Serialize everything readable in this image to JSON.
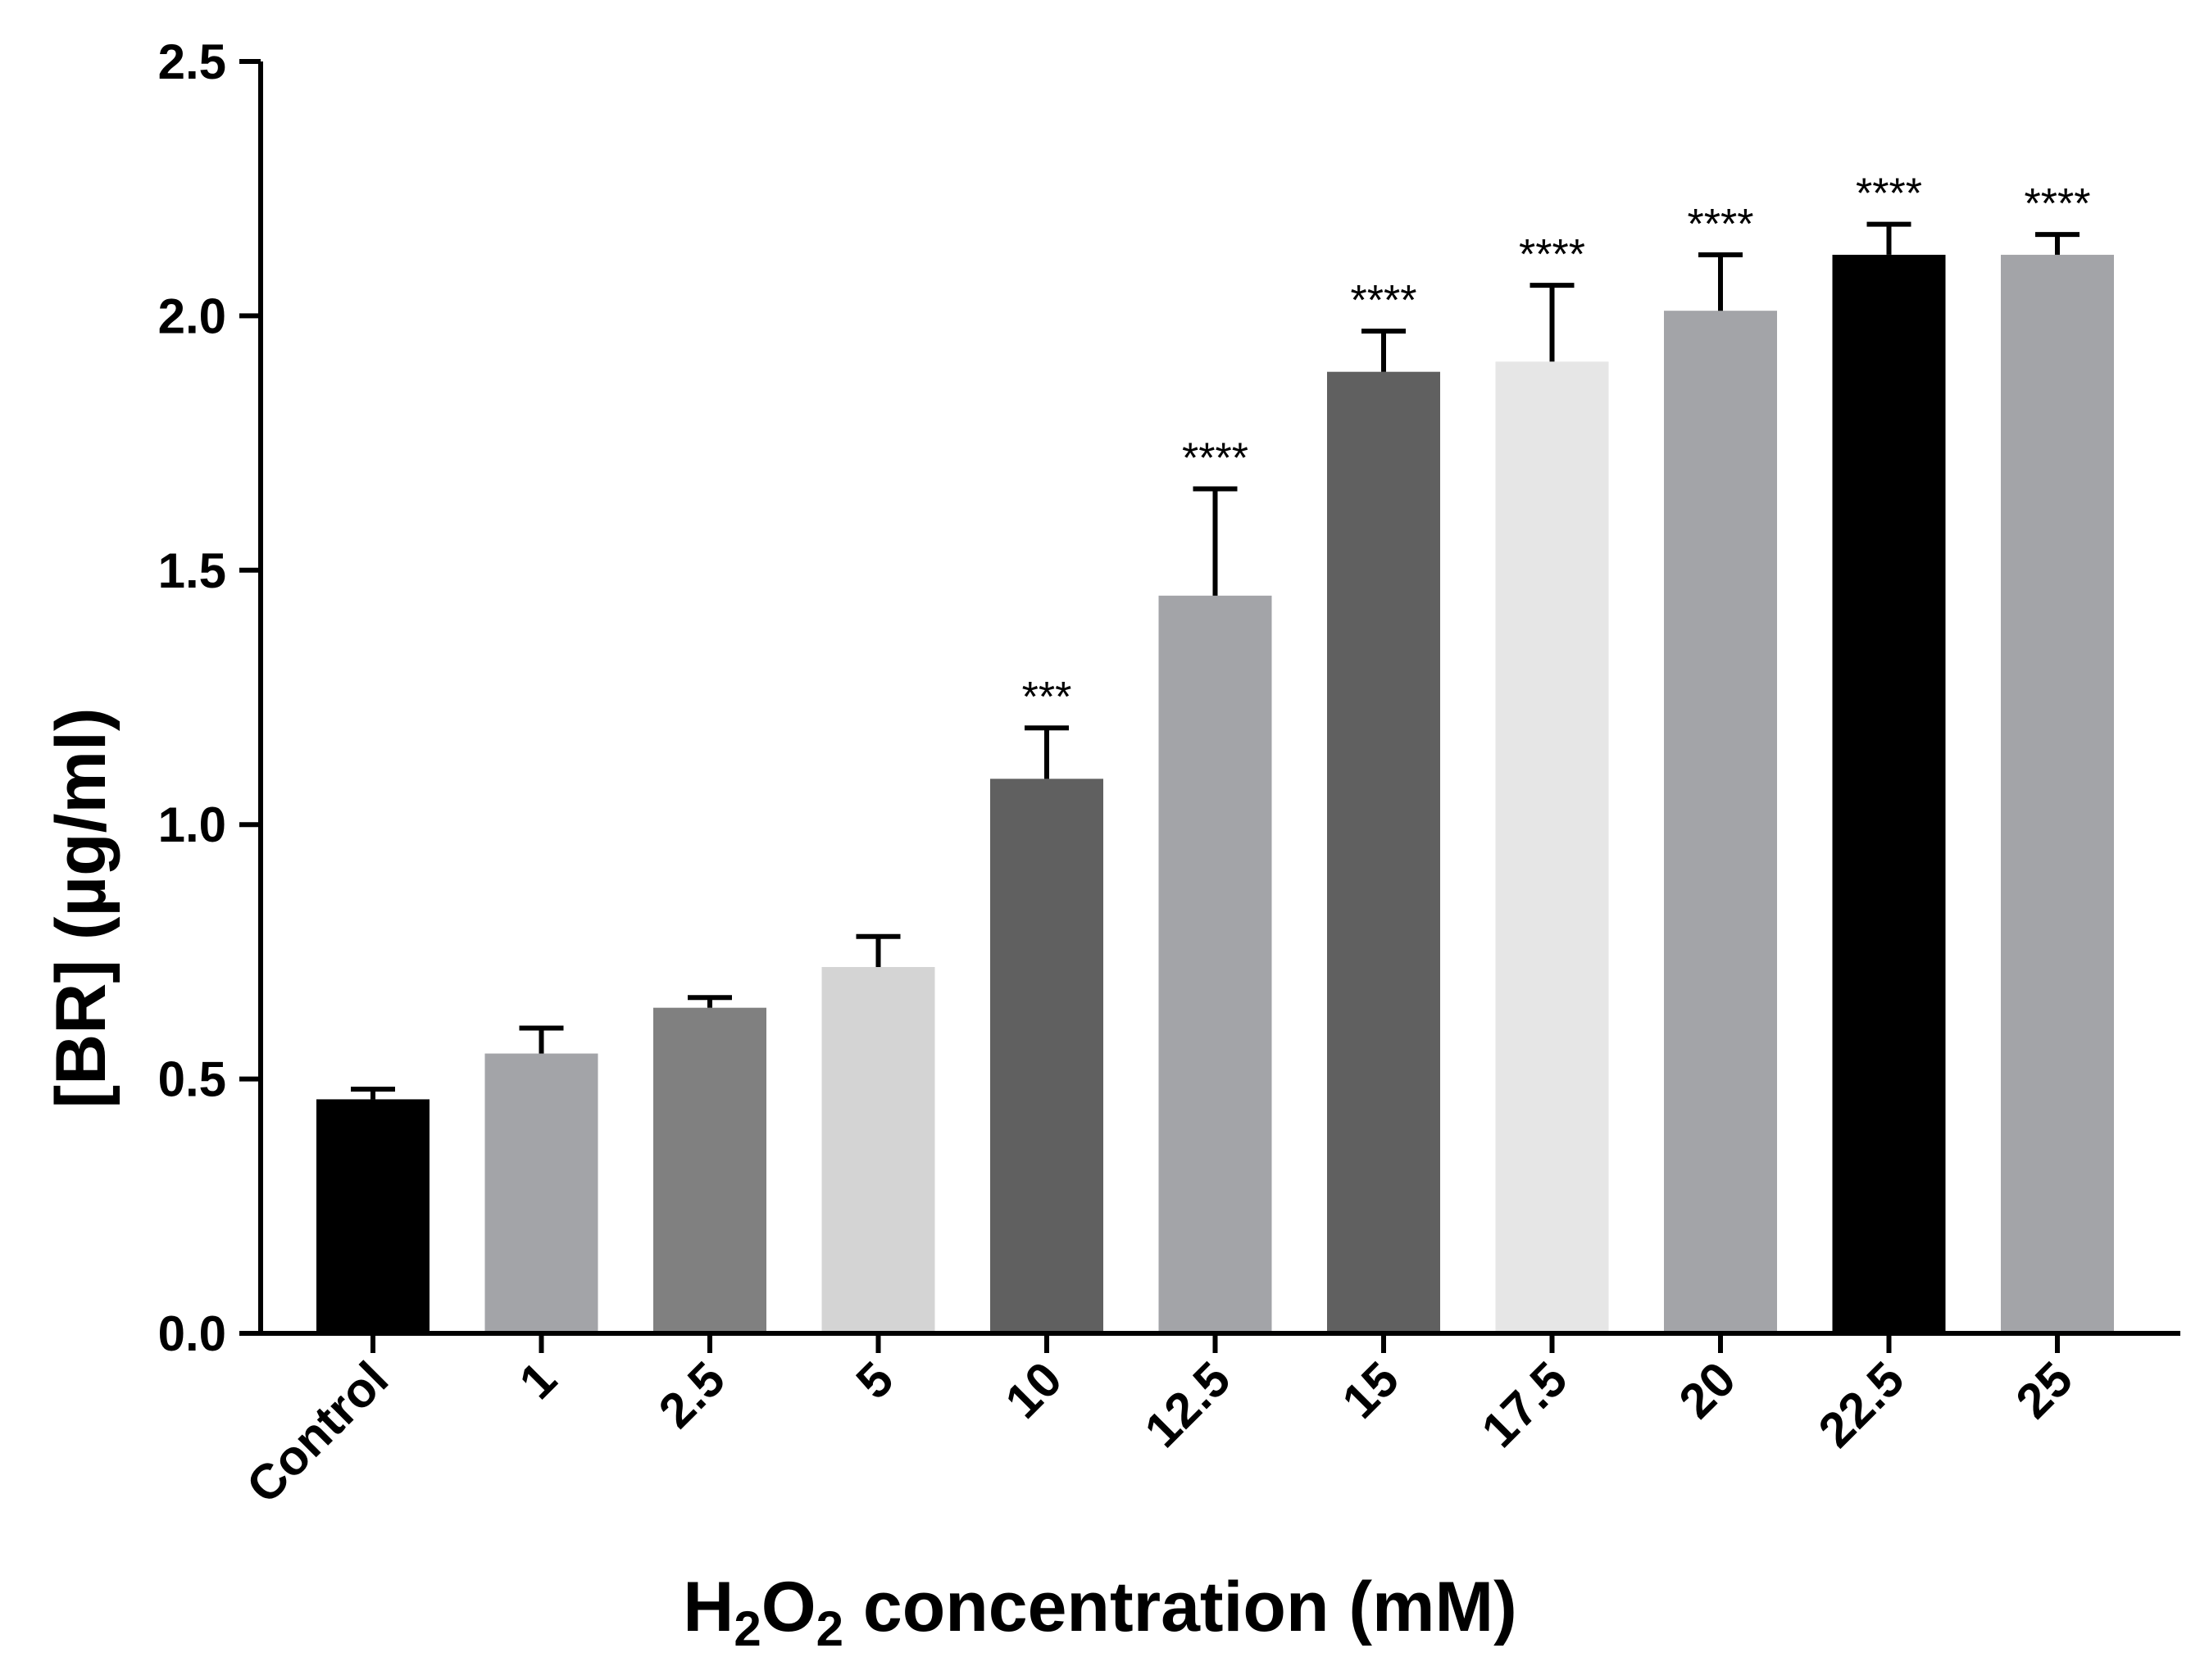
{
  "chart_data": {
    "type": "bar",
    "title": "",
    "xlabel": {
      "main": "H",
      "sub1": "2",
      "mid": "O",
      "sub2": "2",
      "rest": " concentration (mM)"
    },
    "ylabel": "[BR] (µg/ml)",
    "ylim": [
      0,
      2.5
    ],
    "yticks": [
      "0.0",
      "0.5",
      "1.0",
      "1.5",
      "2.0",
      "2.5"
    ],
    "categories": [
      "Control",
      "1",
      "2.5",
      "5",
      "10",
      "12.5",
      "15",
      "17.5",
      "20",
      "22.5",
      "25"
    ],
    "values": [
      0.46,
      0.55,
      0.64,
      0.72,
      1.09,
      1.45,
      1.89,
      1.91,
      2.01,
      2.12,
      2.12
    ],
    "error_upper": [
      0.48,
      0.6,
      0.66,
      0.78,
      1.19,
      1.66,
      1.97,
      2.06,
      2.12,
      2.18,
      2.16
    ],
    "significance": [
      "",
      "",
      "",
      "",
      "***",
      "****",
      "****",
      "****",
      "****",
      "****",
      "****"
    ],
    "colors": [
      "#000000",
      "#a3a4a8",
      "#808080",
      "#d4d4d4",
      "#606060",
      "#a3a4a8",
      "#606060",
      "#e6e6e6",
      "#a3a4a8",
      "#000000",
      "#a3a4a8"
    ]
  }
}
